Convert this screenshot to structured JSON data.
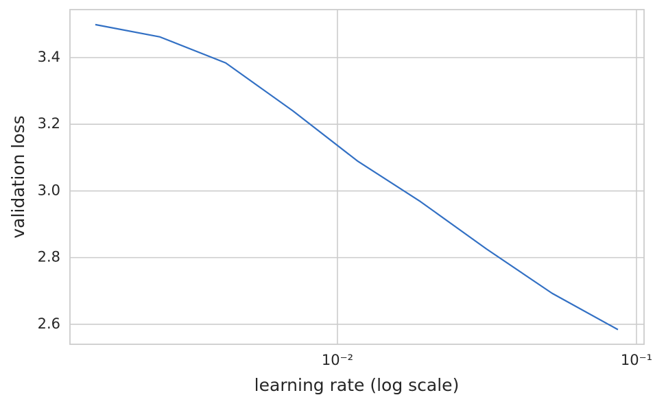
{
  "chart_data": {
    "type": "line",
    "x": [
      0.00155,
      0.00255,
      0.00423,
      0.0071,
      0.01166,
      0.01895,
      0.0315,
      0.0522,
      0.0867
    ],
    "series": [
      {
        "name": "validation loss",
        "color": "#3270c4",
        "values": [
          3.499,
          3.462,
          3.384,
          3.24,
          3.09,
          2.968,
          2.826,
          2.693,
          2.584
        ]
      }
    ],
    "xlabel": "learning rate (log scale)",
    "ylabel": "validation loss",
    "xscale": "log",
    "xlim": [
      0.001275,
      0.106
    ],
    "xticks": [
      {
        "value": 0.01,
        "label": "10⁻²"
      },
      {
        "value": 0.1,
        "label": "10⁻¹"
      }
    ],
    "ylim": [
      2.54,
      3.544
    ],
    "yticks": [
      {
        "value": 2.6,
        "label": "2.6"
      },
      {
        "value": 2.8,
        "label": "2.8"
      },
      {
        "value": 3.0,
        "label": "3.0"
      },
      {
        "value": 3.2,
        "label": "3.2"
      },
      {
        "value": 3.4,
        "label": "3.4"
      }
    ],
    "grid": true
  }
}
